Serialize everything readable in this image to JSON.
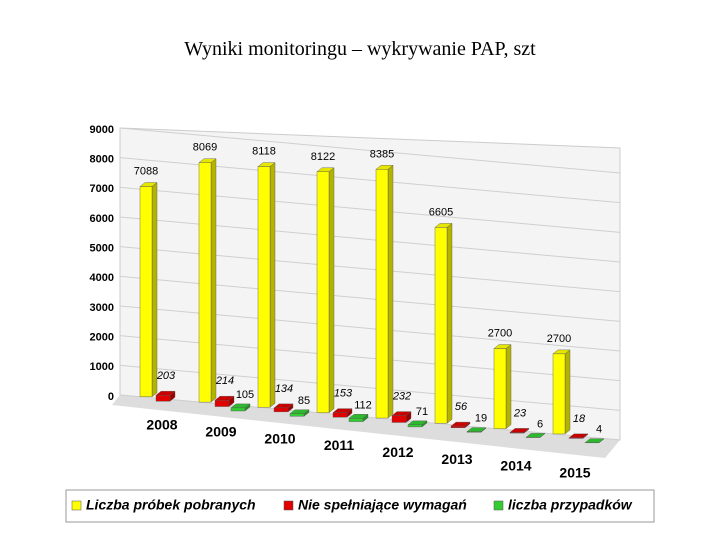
{
  "title": "Wyniki monitoringu – wykrywanie PAP, szt",
  "chart_data": {
    "type": "bar3d",
    "categories": [
      "2008",
      "2009",
      "2010",
      "2011",
      "2012",
      "2013",
      "2014",
      "2015"
    ],
    "series": [
      {
        "name": "Liczba próbek pobranych",
        "color": "#ffff00",
        "values": [
          7088,
          8069,
          8118,
          8122,
          8385,
          6605,
          2700,
          2700
        ]
      },
      {
        "name": "Nie spełniające wymagań",
        "color": "#e00000",
        "values": [
          203,
          214,
          134,
          153,
          232,
          56,
          23,
          18
        ]
      },
      {
        "name": "liczba przypadków",
        "color": "#33cc33",
        "values": [
          null,
          105,
          85,
          112,
          71,
          19,
          6,
          4
        ]
      }
    ],
    "ylim": [
      0,
      9000
    ],
    "yticks": [
      0,
      1000,
      2000,
      3000,
      4000,
      5000,
      6000,
      7000,
      8000,
      9000
    ],
    "grid": true
  }
}
